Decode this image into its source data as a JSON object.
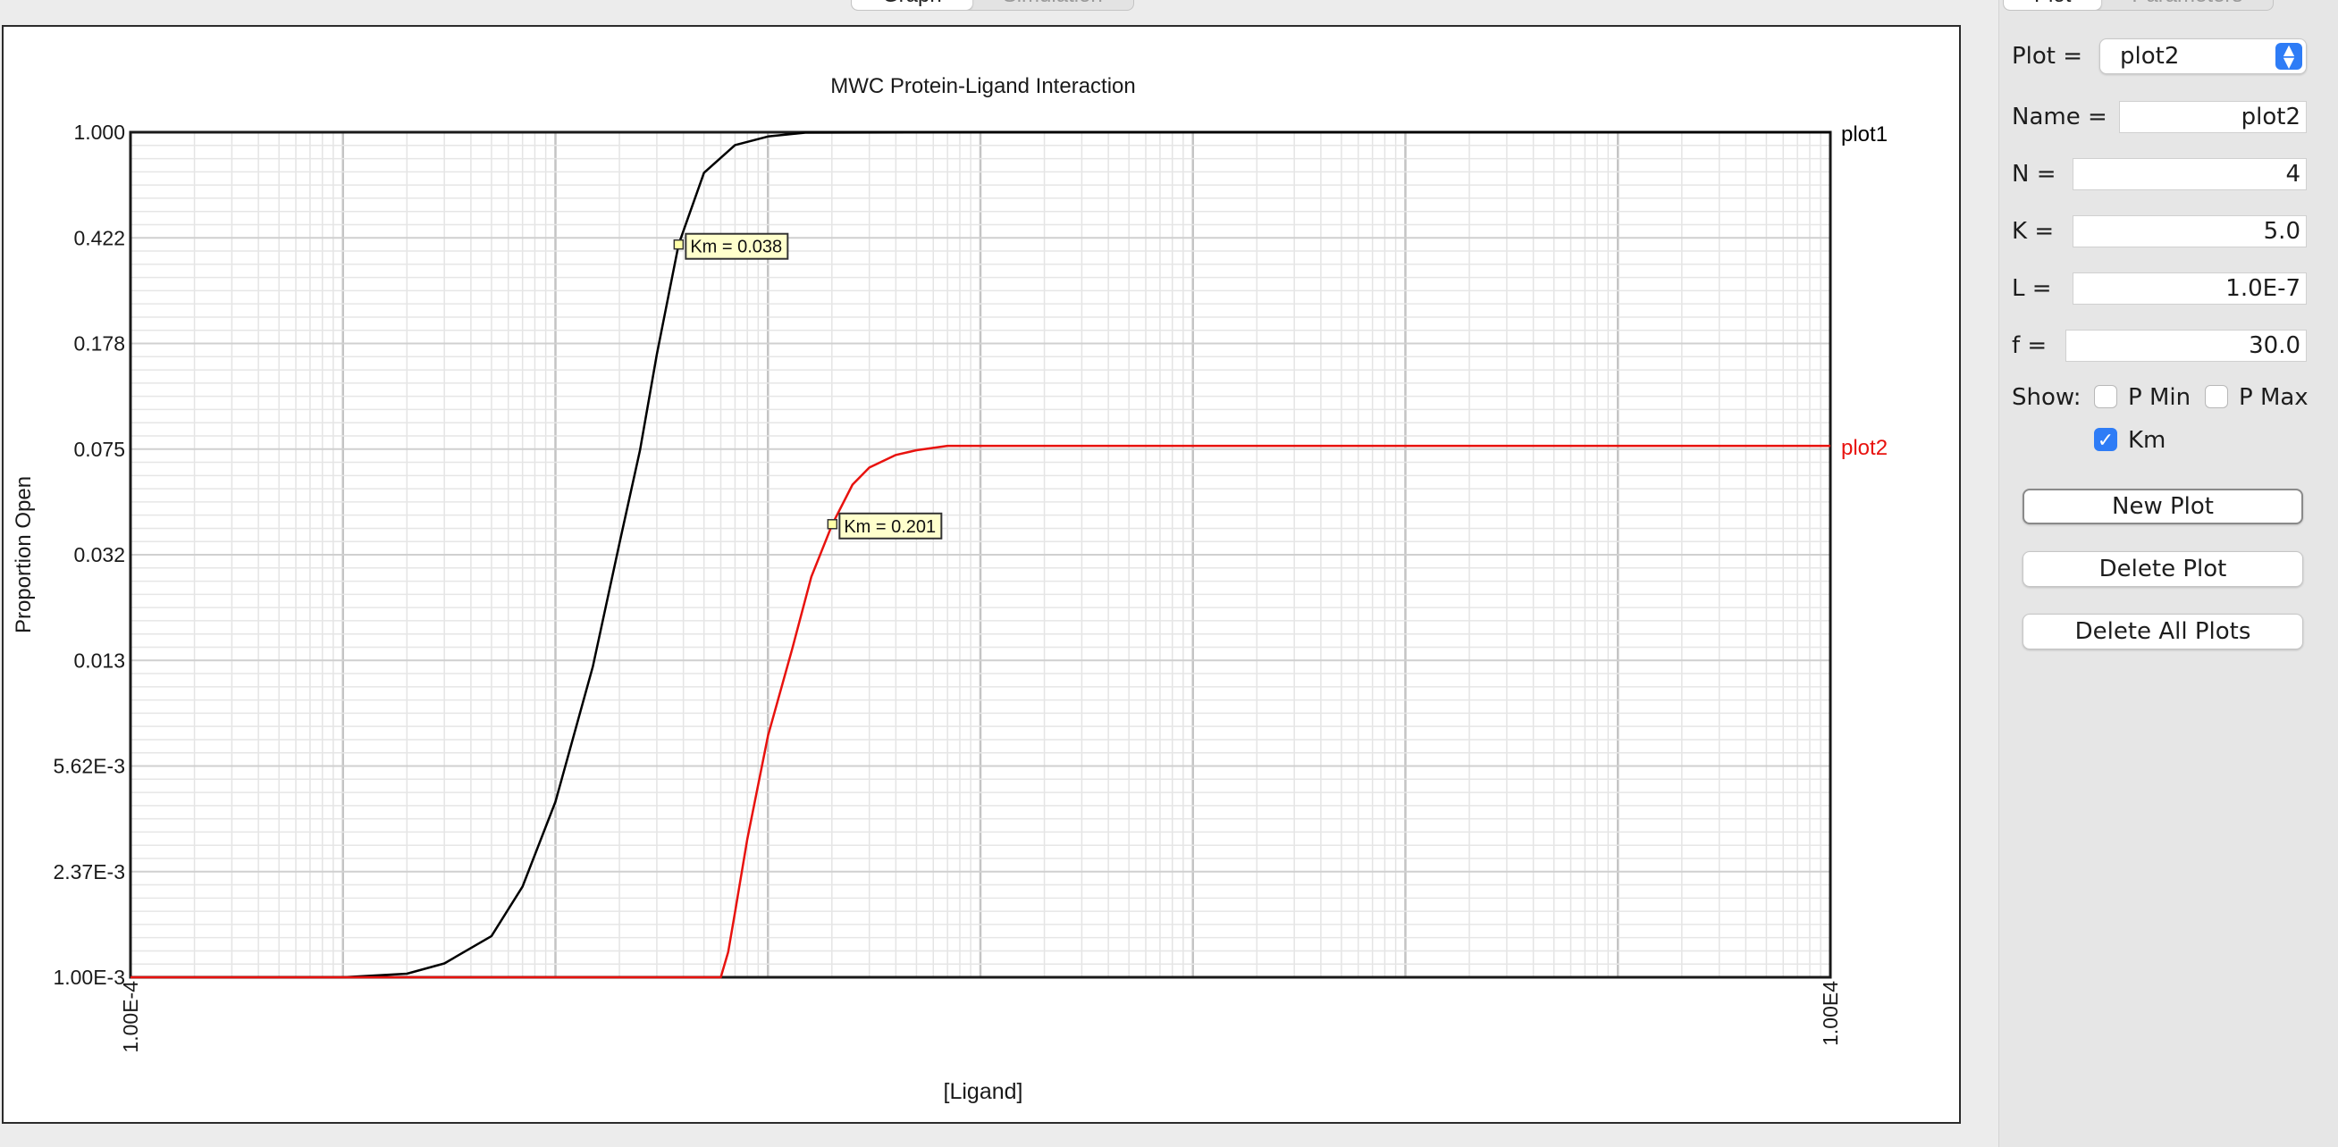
{
  "tabs_left": [
    "Graph",
    "Simulation"
  ],
  "tabs_right": [
    "Plot",
    "Parameters"
  ],
  "chart_data": {
    "type": "line",
    "title": "MWC Protein-Ligand Interaction",
    "xlabel": "[Ligand]",
    "ylabel": "Proportion Open",
    "x_scale": "log",
    "y_scale": "log",
    "xlim": [
      0.0001,
      10000
    ],
    "ylim": [
      0.001,
      1.0
    ],
    "x_tick_labels": [
      "1.00E-4",
      "1.00E4"
    ],
    "y_tick_labels": [
      "1.000",
      "0.422",
      "0.178",
      "0.075",
      "0.032",
      "0.013",
      "5.62E-3",
      "2.37E-3",
      "1.00E-3"
    ],
    "grid": true,
    "series": [
      {
        "name": "plot1",
        "color": "#000000",
        "x": [
          0.0001,
          0.001,
          0.002,
          0.003,
          0.005,
          0.007,
          0.01,
          0.015,
          0.02,
          0.025,
          0.03,
          0.038,
          0.05,
          0.07,
          0.1,
          0.15,
          1,
          10000
        ],
        "y": [
          0.001,
          0.001,
          0.00103,
          0.00112,
          0.0014,
          0.0021,
          0.0042,
          0.0127,
          0.0347,
          0.0743,
          0.1624,
          0.3993,
          0.7179,
          0.8999,
          0.9657,
          0.9966,
          1.0,
          1.0
        ],
        "annotation": "Km = 0.038",
        "annotation_x": 0.038,
        "annotation_y": 0.3993
      },
      {
        "name": "plot2",
        "color": "#e8120e",
        "x": [
          0.0001,
          0.06,
          0.065,
          0.07,
          0.08,
          0.1,
          0.13,
          0.16,
          0.201,
          0.25,
          0.3,
          0.4,
          0.5,
          0.7,
          10000
        ],
        "y": [
          0.001,
          0.001,
          0.00123,
          0.0017,
          0.0031,
          0.0072,
          0.0146,
          0.0264,
          0.0406,
          0.0561,
          0.0645,
          0.0715,
          0.0743,
          0.077,
          0.077
        ],
        "annotation": "Km = 0.201",
        "annotation_x": 0.201,
        "annotation_y": 0.0406
      }
    ]
  },
  "side": {
    "plot_label": "Plot =",
    "plot_selected": "plot2",
    "name_label": "Name =",
    "name_value": "plot2",
    "n_label": "N =",
    "n_value": "4",
    "k_label": "K =",
    "k_value": "5.0",
    "l_label": "L =",
    "l_value": "1.0E-7",
    "f_label": "f =",
    "f_value": "30.0",
    "show_label": "Show:",
    "pmin_label": "P Min",
    "pmin_checked": false,
    "pmax_label": "P Max",
    "pmax_checked": false,
    "km_label": "Km",
    "km_checked": true,
    "new_plot": "New Plot",
    "delete_plot": "Delete Plot",
    "delete_all": "Delete All Plots"
  }
}
